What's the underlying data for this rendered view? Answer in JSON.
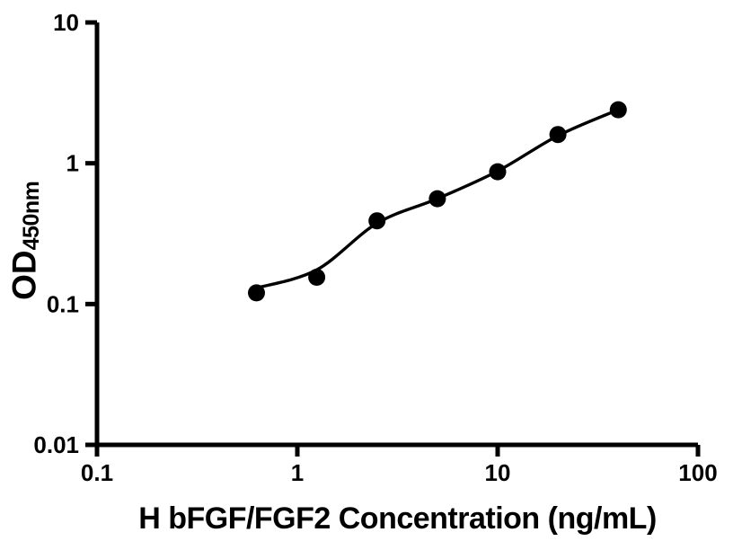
{
  "figure": {
    "background_color": "#ffffff",
    "ink_color": "#000000"
  },
  "chart_data": {
    "type": "scatter",
    "title": "",
    "xlabel": "H bFGF/FGF2 Concentration (ng/mL)",
    "ylabel": "OD",
    "ylabel_subscript": "450nm",
    "x_scale": "log",
    "y_scale": "log",
    "xlim": [
      0.1,
      100
    ],
    "ylim": [
      0.01,
      10
    ],
    "grid": false,
    "legend": false,
    "x_ticks": [
      {
        "value": 0.1,
        "label": "0.1"
      },
      {
        "value": 1,
        "label": "1"
      },
      {
        "value": 10,
        "label": "10"
      },
      {
        "value": 100,
        "label": "100"
      }
    ],
    "y_ticks": [
      {
        "value": 0.01,
        "label": "0.01"
      },
      {
        "value": 0.1,
        "label": "0.1"
      },
      {
        "value": 1,
        "label": "1"
      },
      {
        "value": 10,
        "label": "10"
      }
    ],
    "series": [
      {
        "name": "standard-curve-points",
        "marker": "circle",
        "marker_color": "#000000",
        "points": [
          {
            "x": 0.625,
            "y": 0.12
          },
          {
            "x": 1.25,
            "y": 0.155
          },
          {
            "x": 2.5,
            "y": 0.39
          },
          {
            "x": 5,
            "y": 0.56
          },
          {
            "x": 10,
            "y": 0.87
          },
          {
            "x": 20,
            "y": 1.6
          },
          {
            "x": 40,
            "y": 2.4
          }
        ]
      }
    ],
    "fit_curve": {
      "name": "four-parameter-fit",
      "color": "#000000",
      "points": [
        {
          "x": 0.625,
          "y": 0.13
        },
        {
          "x": 1.25,
          "y": 0.175
        },
        {
          "x": 2.5,
          "y": 0.375
        },
        {
          "x": 5,
          "y": 0.56
        },
        {
          "x": 10,
          "y": 0.88
        },
        {
          "x": 20,
          "y": 1.57
        },
        {
          "x": 40,
          "y": 2.4
        }
      ]
    }
  }
}
